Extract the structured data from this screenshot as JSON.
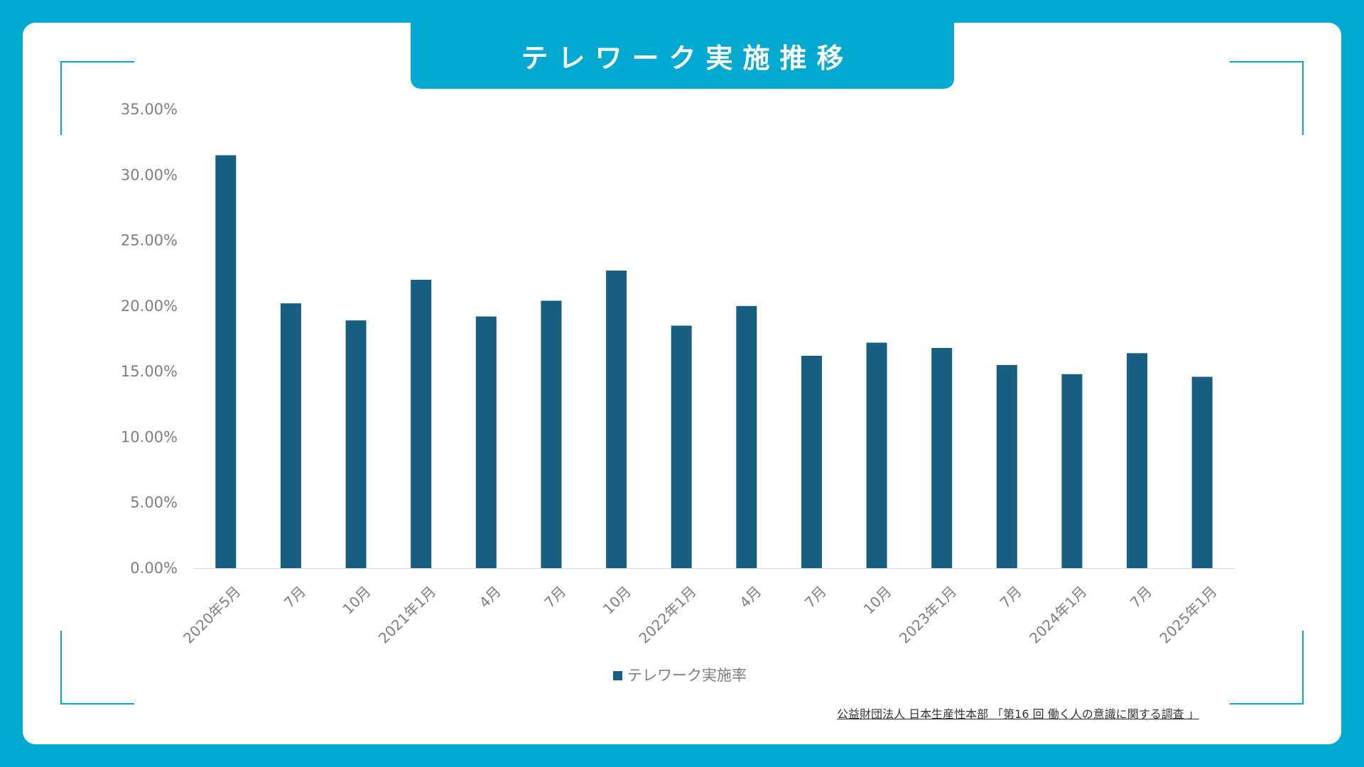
{
  "title": "テレワーク実施推移",
  "source": "公益財団法人 日本生産性本部 「第16 回 働く人の意識に関する調査 」",
  "colors": {
    "background": "#02A9D0",
    "card": "#FFFFFF",
    "bar": "#175E80",
    "axis_text": "#7F7F7F"
  },
  "chart_data": {
    "type": "bar",
    "categories": [
      "2020年5月",
      "7月",
      "10月",
      "2021年1月",
      "4月",
      "7月",
      "10月",
      "2022年1月",
      "4月",
      "7月",
      "10月",
      "2023年1月",
      "7月",
      "2024年1月",
      "7月",
      "2025年1月"
    ],
    "series": [
      {
        "name": "テレワーク実施率",
        "values": [
          31.5,
          20.2,
          18.9,
          22.0,
          19.2,
          20.4,
          22.7,
          18.5,
          20.0,
          16.2,
          17.2,
          16.8,
          15.5,
          14.8,
          16.4,
          14.6
        ]
      }
    ],
    "ylim": [
      0,
      35
    ],
    "yticks": [
      "0.00%",
      "5.00%",
      "10.00%",
      "15.00%",
      "20.00%",
      "25.00%",
      "30.00%",
      "35.00%"
    ],
    "ytick_values": [
      0,
      5,
      10,
      15,
      20,
      25,
      30,
      35
    ],
    "legend_position": "bottom",
    "grid": false
  }
}
